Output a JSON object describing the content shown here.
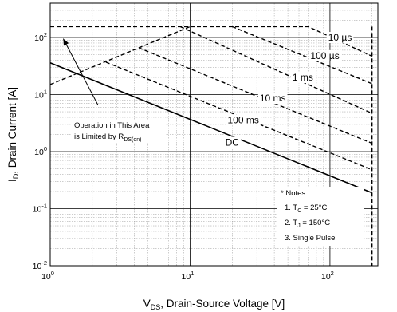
{
  "chart_data": {
    "type": "line",
    "xlabel": {
      "main": "V",
      "sub": "DS",
      "rest": ", Drain-Source Voltage [V]"
    },
    "ylabel": {
      "main": "I",
      "sub": "D",
      "rest": ", Drain Current [A]"
    },
    "xscale": "log",
    "yscale": "log",
    "xlim": [
      1,
      220
    ],
    "ylim": [
      0.01,
      400
    ],
    "grid": true,
    "x_ticks": [
      {
        "v": 1,
        "base": "10",
        "exp": "0"
      },
      {
        "v": 10,
        "base": "10",
        "exp": "1"
      },
      {
        "v": 100,
        "base": "10",
        "exp": "2"
      }
    ],
    "y_ticks": [
      {
        "v": 0.01,
        "base": "10",
        "exp": "-2"
      },
      {
        "v": 0.1,
        "base": "10",
        "exp": "-1"
      },
      {
        "v": 1,
        "base": "10",
        "exp": "0"
      },
      {
        "v": 10,
        "base": "10",
        "exp": "1"
      },
      {
        "v": 100,
        "base": "10",
        "exp": "2"
      }
    ],
    "series": [
      {
        "name": "DC",
        "style": "solid",
        "points": [
          [
            1,
            36
          ],
          [
            200,
            0.19
          ]
        ]
      },
      {
        "name": "100 ms",
        "style": "dashed",
        "points": [
          [
            2.5,
            37
          ],
          [
            200,
            0.48
          ]
        ]
      },
      {
        "name": "10 ms",
        "style": "dashed",
        "points": [
          [
            4.3,
            66
          ],
          [
            200,
            1.4
          ]
        ]
      },
      {
        "name": "1 ms",
        "style": "dashed",
        "points": [
          [
            8.5,
            155
          ],
          [
            200,
            4.7
          ]
        ]
      },
      {
        "name": "100 µs",
        "style": "dashed",
        "points": [
          [
            20,
            155
          ],
          [
            200,
            15.5
          ]
        ]
      },
      {
        "name": "10 µs",
        "style": "dashed",
        "points": [
          [
            1,
            155
          ],
          [
            70,
            155
          ],
          [
            200,
            47
          ]
        ]
      },
      {
        "name": "RDS(on) limit",
        "style": "dashed",
        "points": [
          [
            1,
            15
          ],
          [
            10,
            155
          ]
        ]
      },
      {
        "name": "BVDSS limit",
        "style": "dashed",
        "points": [
          [
            200,
            155
          ],
          [
            200,
            0.01
          ]
        ]
      }
    ],
    "curve_labels": [
      {
        "text": "10 µs",
        "x": 118,
        "y": 100
      },
      {
        "text": "100 µs",
        "x": 92,
        "y": 48
      },
      {
        "text": "1 ms",
        "x": 64,
        "y": 20
      },
      {
        "text": "10 ms",
        "x": 39,
        "y": 8.6
      },
      {
        "text": "100 ms",
        "x": 24,
        "y": 3.6
      },
      {
        "text": "DC",
        "x": 20,
        "y": 1.45
      }
    ],
    "annotation": {
      "line1": "Operation in This Area",
      "line2_main": "is Limited by R",
      "line2_sub": "DS(on)"
    },
    "notes": {
      "title": "* Notes :",
      "items": [
        {
          "prefix": "1. T",
          "sub": "C",
          "rest": " = 25",
          "unit": "°C"
        },
        {
          "prefix": "2. T",
          "sub": "J",
          "rest": " = 150",
          "unit": "°C"
        },
        {
          "prefix": "3. Single Pulse",
          "sub": "",
          "rest": "",
          "unit": ""
        }
      ]
    }
  }
}
